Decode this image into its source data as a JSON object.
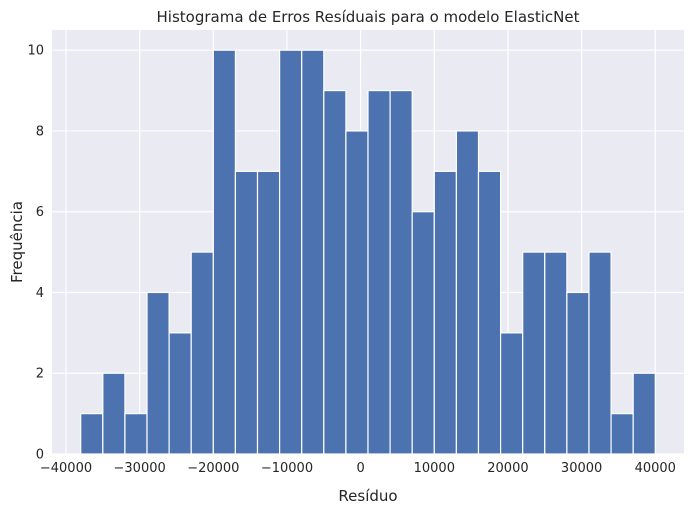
{
  "chart_data": {
    "type": "bar",
    "title": "Histograma de Erros Resíduais para o modelo ElasticNet",
    "xlabel": "Resíduo",
    "ylabel": "Frequência",
    "bin_start": -38000,
    "bin_end": 40000,
    "bin_counts": [
      1,
      2,
      1,
      4,
      3,
      5,
      10,
      7,
      7,
      10,
      10,
      9,
      8,
      9,
      9,
      6,
      7,
      8,
      7,
      3,
      5,
      5,
      4,
      5,
      1,
      2
    ],
    "xticks": [
      -40000,
      -30000,
      -20000,
      -10000,
      0,
      10000,
      20000,
      30000,
      40000
    ],
    "xtick_labels": [
      "−40000",
      "−30000",
      "−20000",
      "−10000",
      "0",
      "10000",
      "20000",
      "30000",
      "40000"
    ],
    "yticks": [
      0,
      2,
      4,
      6,
      8,
      10
    ],
    "xlim": [
      -41900,
      43900
    ],
    "ylim": [
      0,
      10.5
    ],
    "grid": true,
    "bar_color": "#4c72b0",
    "background_color": "#eaeaf2"
  }
}
